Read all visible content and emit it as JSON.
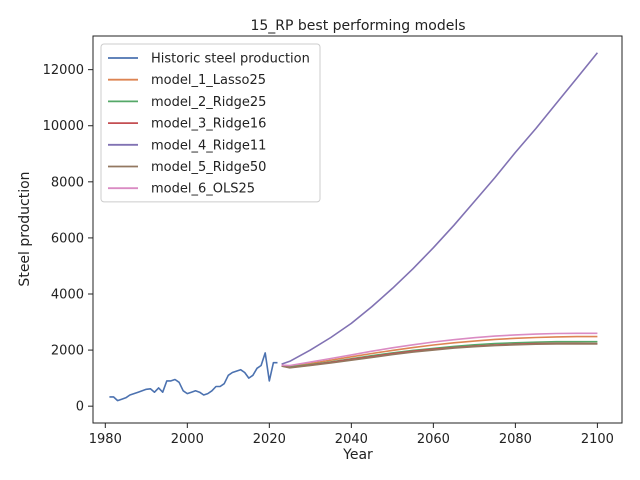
{
  "chart_data": {
    "type": "line",
    "title": "15_RP best performing models",
    "xlabel": "Year",
    "ylabel": "Steel production",
    "xlim": [
      1977,
      2106
    ],
    "ylim": [
      -600,
      13200
    ],
    "xticks": [
      1980,
      2000,
      2020,
      2040,
      2060,
      2080,
      2100
    ],
    "yticks": [
      0,
      2000,
      4000,
      6000,
      8000,
      10000,
      12000
    ],
    "grid": false,
    "legend": "top-left",
    "series": [
      {
        "name": "Historic steel production",
        "color": "#4c72b0",
        "x": [
          1981,
          1982,
          1983,
          1984,
          1985,
          1986,
          1987,
          1988,
          1989,
          1990,
          1991,
          1992,
          1993,
          1994,
          1995,
          1996,
          1997,
          1998,
          1999,
          2000,
          2001,
          2002,
          2003,
          2004,
          2005,
          2006,
          2007,
          2008,
          2009,
          2010,
          2011,
          2012,
          2013,
          2014,
          2015,
          2016,
          2017,
          2018,
          2019,
          2020,
          2021,
          2022
        ],
        "y": [
          330,
          330,
          200,
          250,
          300,
          400,
          450,
          500,
          550,
          600,
          620,
          500,
          650,
          500,
          900,
          900,
          950,
          850,
          550,
          450,
          500,
          550,
          500,
          400,
          450,
          550,
          700,
          700,
          800,
          1100,
          1200,
          1250,
          1300,
          1200,
          1000,
          1100,
          1350,
          1450,
          1900,
          900,
          1550,
          1550
        ]
      },
      {
        "name": "model_1_Lasso25",
        "color": "#dd8452",
        "x": [
          2023,
          2025,
          2030,
          2035,
          2040,
          2045,
          2050,
          2055,
          2060,
          2065,
          2070,
          2075,
          2080,
          2085,
          2090,
          2095,
          2100
        ],
        "y": [
          1450,
          1420,
          1520,
          1640,
          1760,
          1880,
          1990,
          2090,
          2180,
          2260,
          2320,
          2380,
          2420,
          2450,
          2470,
          2480,
          2480
        ]
      },
      {
        "name": "model_2_Ridge25",
        "color": "#55a868",
        "x": [
          2023,
          2025,
          2030,
          2035,
          2040,
          2045,
          2050,
          2055,
          2060,
          2065,
          2070,
          2075,
          2080,
          2085,
          2090,
          2095,
          2100
        ],
        "y": [
          1450,
          1400,
          1480,
          1580,
          1690,
          1800,
          1900,
          1990,
          2060,
          2130,
          2190,
          2230,
          2260,
          2280,
          2300,
          2300,
          2300
        ]
      },
      {
        "name": "model_3_Ridge16",
        "color": "#c44e52",
        "x": [
          2023,
          2025,
          2030,
          2035,
          2040,
          2045,
          2050,
          2055,
          2060,
          2065,
          2070,
          2075,
          2080,
          2085,
          2090,
          2095,
          2100
        ],
        "y": [
          1440,
          1380,
          1460,
          1560,
          1670,
          1770,
          1870,
          1960,
          2030,
          2090,
          2140,
          2180,
          2210,
          2230,
          2240,
          2240,
          2230
        ]
      },
      {
        "name": "model_4_Ridge11",
        "color": "#8172b3",
        "x": [
          2023,
          2025,
          2030,
          2035,
          2040,
          2045,
          2050,
          2055,
          2060,
          2065,
          2070,
          2075,
          2080,
          2085,
          2090,
          2095,
          2100
        ],
        "y": [
          1500,
          1600,
          2000,
          2450,
          2950,
          3550,
          4200,
          4900,
          5650,
          6450,
          7300,
          8150,
          9050,
          9900,
          10800,
          11700,
          12600
        ]
      },
      {
        "name": "model_5_Ridge50",
        "color": "#937860",
        "x": [
          2023,
          2025,
          2030,
          2035,
          2040,
          2045,
          2050,
          2055,
          2060,
          2065,
          2070,
          2075,
          2080,
          2085,
          2090,
          2095,
          2100
        ],
        "y": [
          1430,
          1370,
          1450,
          1540,
          1640,
          1740,
          1840,
          1930,
          2000,
          2070,
          2120,
          2160,
          2190,
          2210,
          2220,
          2220,
          2220
        ]
      },
      {
        "name": "model_6_OLS25",
        "color": "#da8bc3",
        "x": [
          2023,
          2025,
          2030,
          2035,
          2040,
          2045,
          2050,
          2055,
          2060,
          2065,
          2070,
          2075,
          2080,
          2085,
          2090,
          2095,
          2100
        ],
        "y": [
          1460,
          1450,
          1570,
          1700,
          1830,
          1960,
          2080,
          2190,
          2290,
          2370,
          2440,
          2500,
          2540,
          2570,
          2590,
          2600,
          2600
        ]
      }
    ]
  }
}
